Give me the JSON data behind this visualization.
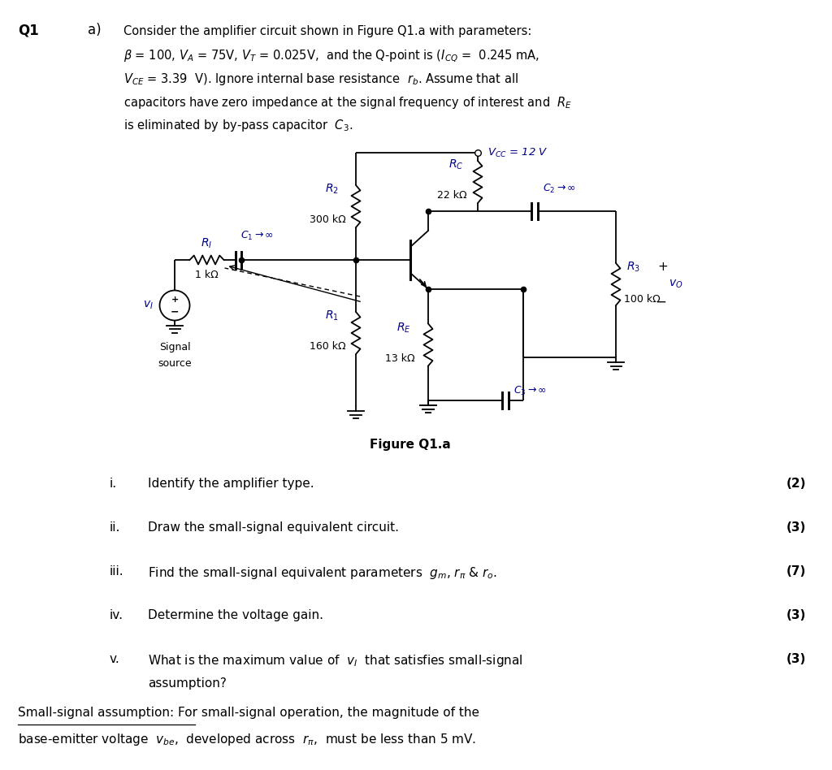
{
  "bg_color": "#ffffff",
  "text_color": "#000000",
  "circuit_color": "#000000",
  "label_color": "#00008B",
  "q1": "Q1",
  "a_label": "a)",
  "line1": "Consider the amplifier circuit shown in Figure Q1.a with parameters:",
  "line2": "$\\beta$ = 100, $V_A$ = 75V, $V_T$ = 0.025V,  and the Q-point is ($I_{CQ}$ =  0.245 mA,",
  "line3": "$V_{CE}$ = 3.39  V). Ignore internal base resistance  $r_b$. Assume that all",
  "line4": "capacitors have zero impedance at the signal frequency of interest and  $R_E$",
  "line5": "is eliminated by by-pass capacitor  $C_3$.",
  "fig_caption": "Figure Q1.a",
  "q_nums": [
    "i.",
    "ii.",
    "iii.",
    "iv.",
    "v."
  ],
  "q_texts": [
    "Identify the amplifier type.",
    "Draw the small-signal equivalent circuit.",
    "Find the small-signal equivalent parameters  $g_m$, $r_\\pi$ & $r_o$.",
    "Determine the voltage gain.",
    "What is the maximum value of  $v_I$  that satisfies small-signal"
  ],
  "q_text2": [
    "",
    "",
    "",
    "",
    "assumption?"
  ],
  "q_marks": [
    "(2)",
    "(3)",
    "(7)",
    "(3)",
    "(3)"
  ],
  "fn_ul": "Small-signal assumption:",
  "fn_rest": " For small-signal operation, the magnitude of the",
  "fn_line2": "base-emitter voltage  $v_{be}$,  developed across  $r_\\pi$,  must be less than 5 mV.",
  "vcc_label": "$V_{CC}$ = 12 V",
  "r2_label": "$R_2$",
  "r2_val": "300 kΩ",
  "r1_label": "$R_1$",
  "r1_val": "160 kΩ",
  "rc_label": "$R_C$",
  "rc_val": "22 kΩ",
  "re_label": "$R_E$",
  "re_val": "13 kΩ",
  "r3_label": "$R_3$",
  "r3_val": "100 kΩ",
  "ri_label": "$R_I$",
  "ri_val": "1 kΩ",
  "c1_label": "$C_1 \\rightarrow \\infty$",
  "c2_label": "$C_2 \\rightarrow \\infty$",
  "c3_label": "$C_3 \\rightarrow \\infty$",
  "vi_label": "$v_I$",
  "vo_label": "$v_O$",
  "sig_label1": "Signal",
  "sig_label2": "source"
}
